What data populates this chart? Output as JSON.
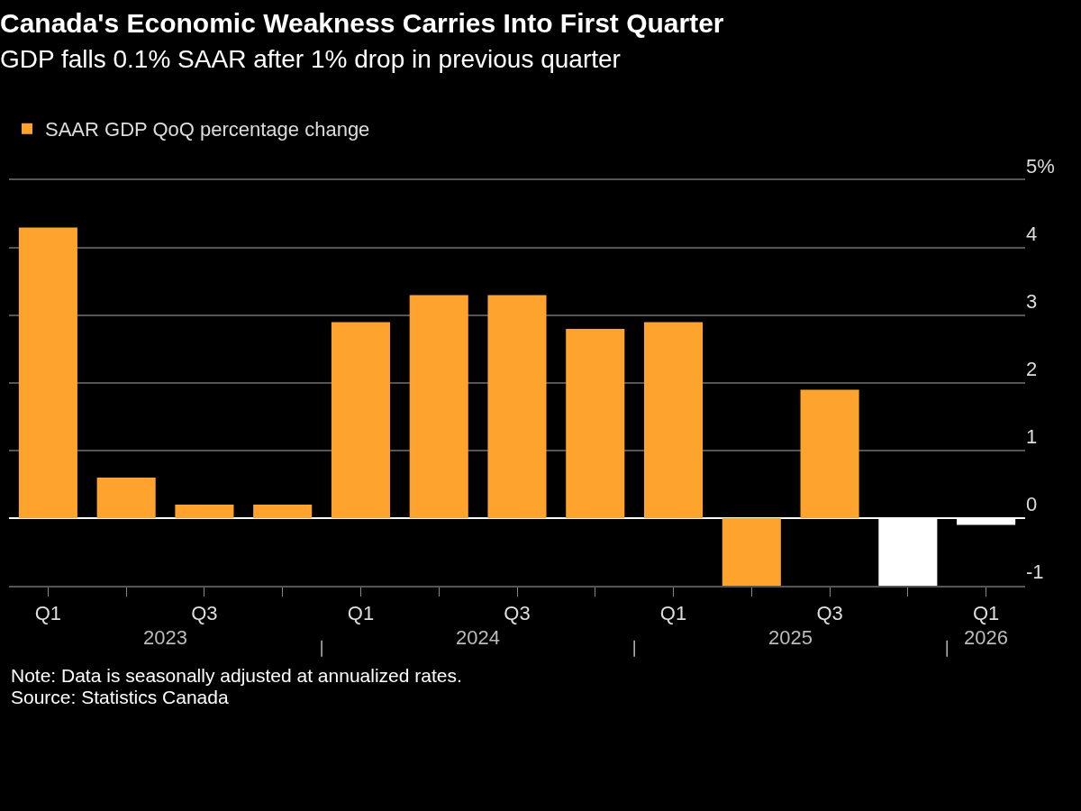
{
  "chart_data": {
    "type": "bar",
    "title": "Canada's Economic Weakness Carries Into First Quarter",
    "subtitle": "GDP falls 0.1% SAAR after 1% drop in previous quarter",
    "categories": [
      "Q1",
      null,
      "Q3",
      null,
      "Q1",
      null,
      "Q3",
      null,
      "Q1",
      null,
      "Q3",
      null,
      "Q1"
    ],
    "series": [
      {
        "name": "SAAR GDP QoQ percentage change",
        "colors": [
          "#ffa32f",
          "#ffa32f",
          "#ffa32f",
          "#ffa32f",
          "#ffa32f",
          "#ffa32f",
          "#ffa32f",
          "#ffa32f",
          "#ffa32f",
          "#ffa32f",
          "#ffa32f",
          "#ffffff",
          "#ffffff"
        ],
        "values": [
          4.3,
          0.6,
          0.2,
          0.2,
          2.9,
          3.3,
          3.3,
          2.8,
          2.9,
          -1.0,
          1.9,
          -1.0,
          -0.1
        ]
      }
    ],
    "ylim": [
      -1,
      5
    ],
    "yticks": [
      -1,
      0,
      1,
      2,
      3,
      4,
      {
        "value": 5,
        "label": "5%"
      }
    ],
    "grid": "y",
    "legend": "top left",
    "annotations": [
      "2023",
      "2024",
      "2025",
      "2026",
      "Note: Data is seasonally adjusted at annualized rates.",
      "Source: Statistics Canada"
    ]
  }
}
